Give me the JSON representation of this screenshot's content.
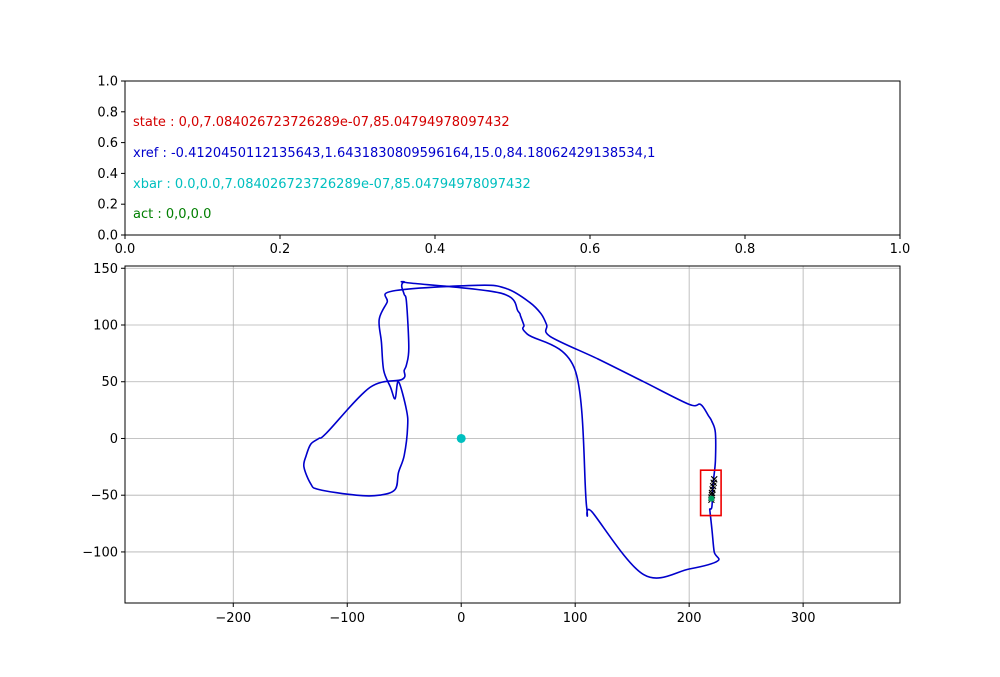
{
  "chart_data": [
    {
      "type": "text",
      "xlim": [
        0.0,
        1.0
      ],
      "ylim": [
        0.0,
        1.0
      ],
      "xticks": [
        "0.0",
        "0.2",
        "0.4",
        "0.6",
        "0.8",
        "1.0"
      ],
      "yticks": [
        "0.0",
        "0.2",
        "0.4",
        "0.6",
        "0.8",
        "1.0"
      ],
      "grid": false,
      "texts": [
        {
          "text": "state : 0,0,7.084026723726289e-07,85.04794978097432",
          "x": 0.01,
          "y": 0.72,
          "color": "#d40000"
        },
        {
          "text": "xref : -0.4120450112135643,1.6431830809596164,15.0,84.18062429138534,1",
          "x": 0.01,
          "y": 0.52,
          "color": "#0000cc"
        },
        {
          "text": "xbar : 0.0,0.0,7.084026723726289e-07,85.04794978097432",
          "x": 0.01,
          "y": 0.32,
          "color": "#00bfbf"
        },
        {
          "text": "act : 0,0,0.0",
          "x": 0.01,
          "y": 0.12,
          "color": "#007f00"
        }
      ]
    },
    {
      "type": "line",
      "xlim": [
        -295,
        385
      ],
      "ylim": [
        -145,
        152
      ],
      "xticks": [
        -200,
        -100,
        0,
        100,
        200,
        300
      ],
      "yticks": [
        -100,
        -50,
        0,
        50,
        100,
        150
      ],
      "grid": true,
      "track": {
        "color": "#0000cc",
        "x": [
          218,
          220,
          221,
          223,
          223,
          220,
          217,
          210,
          200,
          160,
          120,
          78,
          75,
          70,
          60,
          40,
          15,
          -60,
          -65,
          -72,
          -70,
          -68,
          -62,
          -58,
          -55,
          -48,
          -47,
          -50,
          -55,
          -58,
          -72,
          -92,
          -125,
          -132,
          -138,
          -136,
          -132,
          -125,
          -118,
          -80,
          -52,
          -50,
          -48,
          -46,
          -48,
          -50,
          -52,
          -52,
          -50,
          -45,
          35,
          50,
          52,
          55,
          58,
          100,
          110,
          115,
          160,
          200,
          225,
          222,
          220,
          218
        ],
        "y": [
          -62,
          -60,
          -40,
          -20,
          5,
          15,
          20,
          30,
          30,
          50,
          70,
          90,
          100,
          110,
          120,
          132,
          135,
          130,
          120,
          105,
          85,
          60,
          45,
          35,
          50,
          25,
          10,
          -15,
          -30,
          -45,
          -50,
          -50,
          -45,
          -40,
          -25,
          -15,
          -5,
          0,
          5,
          45,
          52,
          60,
          65,
          80,
          120,
          127,
          133,
          136,
          138,
          137,
          128,
          112,
          108,
          100,
          92,
          60,
          -60,
          -65,
          -120,
          -115,
          -108,
          -100,
          -80,
          -62
        ]
      },
      "origin_point": {
        "x": 0,
        "y": 0,
        "color": "#00bfbf"
      },
      "vehicle_box": {
        "color": "#ee0000",
        "corners": [
          [
            210,
            -28
          ],
          [
            228,
            -28
          ],
          [
            228,
            -68
          ],
          [
            210,
            -68
          ]
        ]
      },
      "predicted_x": [
        222,
        221.5,
        221,
        220.5,
        220,
        220,
        219.5,
        219.5
      ],
      "predicted_y": [
        -36,
        -39,
        -42,
        -45,
        -48,
        -50,
        -52,
        -54
      ],
      "marker_color": "#000000",
      "current_point": {
        "x": 219.5,
        "y": -53,
        "color": "#00a060"
      }
    }
  ]
}
